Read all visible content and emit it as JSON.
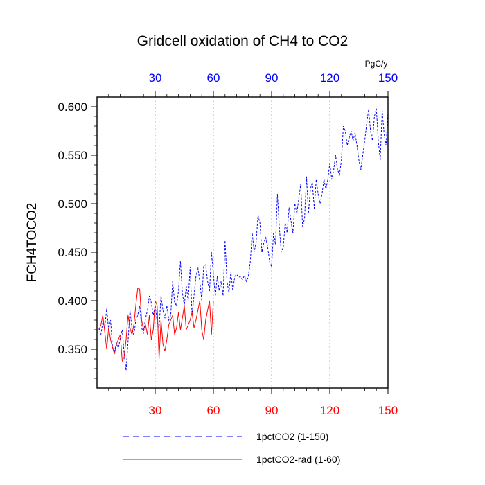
{
  "chart_data": {
    "type": "line",
    "title": "Gridcell oxidation of CH4 to CO2",
    "ylabel": "FCH4TOCO2",
    "xlabel": "",
    "top_axis_unit": "PgC/y",
    "xlim": [
      0,
      150
    ],
    "ylim": [
      0.31,
      0.61
    ],
    "yticks": [
      0.35,
      0.4,
      0.45,
      0.5,
      0.55,
      0.6
    ],
    "ytick_labels": [
      "0.350",
      "0.400",
      "0.450",
      "0.500",
      "0.550",
      "0.600"
    ],
    "xticks": [
      30,
      60,
      90,
      120,
      150
    ],
    "xtick_labels": [
      "30",
      "60",
      "90",
      "120",
      "150"
    ],
    "top_xticks": [
      30,
      60,
      90,
      120,
      150
    ],
    "top_xtick_labels": [
      "30",
      "60",
      "90",
      "120",
      "150"
    ],
    "vertical_grid": true,
    "legend_position": "bottom",
    "colors": {
      "series_1": "#0000ff",
      "series_2": "#ff0000",
      "bottom_ticks": "#ff0000",
      "top_ticks": "#0000ff"
    },
    "series": [
      {
        "name": "1pctCO2 (1-150)",
        "style": "dashed",
        "x_start": 1,
        "values": [
          0.372,
          0.365,
          0.378,
          0.372,
          0.392,
          0.37,
          0.38,
          0.352,
          0.348,
          0.356,
          0.35,
          0.362,
          0.37,
          0.345,
          0.328,
          0.358,
          0.39,
          0.372,
          0.364,
          0.38,
          0.385,
          0.395,
          0.372,
          0.367,
          0.382,
          0.39,
          0.405,
          0.398,
          0.385,
          0.395,
          0.378,
          0.372,
          0.405,
          0.39,
          0.382,
          0.395,
          0.38,
          0.385,
          0.42,
          0.398,
          0.395,
          0.41,
          0.441,
          0.408,
          0.395,
          0.415,
          0.4,
          0.435,
          0.385,
          0.405,
          0.425,
          0.434,
          0.42,
          0.4,
          0.436,
          0.437,
          0.42,
          0.41,
          0.45,
          0.427,
          0.405,
          0.425,
          0.41,
          0.42,
          0.405,
          0.462,
          0.42,
          0.408,
          0.43,
          0.41,
          0.425,
          0.427,
          0.424,
          0.425,
          0.422,
          0.426,
          0.42,
          0.425,
          0.44,
          0.47,
          0.45,
          0.46,
          0.488,
          0.48,
          0.45,
          0.46,
          0.465,
          0.455,
          0.44,
          0.435,
          0.47,
          0.458,
          0.51,
          0.475,
          0.45,
          0.455,
          0.48,
          0.47,
          0.496,
          0.482,
          0.47,
          0.5,
          0.49,
          0.505,
          0.52,
          0.476,
          0.485,
          0.528,
          0.49,
          0.515,
          0.522,
          0.495,
          0.525,
          0.51,
          0.5,
          0.51,
          0.525,
          0.515,
          0.525,
          0.542,
          0.525,
          0.535,
          0.55,
          0.535,
          0.53,
          0.545,
          0.58,
          0.575,
          0.56,
          0.568,
          0.575,
          0.565,
          0.573,
          0.56,
          0.545,
          0.535,
          0.55,
          0.565,
          0.582,
          0.597,
          0.575,
          0.565,
          0.59,
          0.598,
          0.565,
          0.545,
          0.596,
          0.572,
          0.56,
          0.595
        ]
      },
      {
        "name": "1pctCO2-rad (1-60)",
        "style": "solid",
        "x_start": 1,
        "values": [
          0.37,
          0.375,
          0.385,
          0.368,
          0.35,
          0.372,
          0.36,
          0.352,
          0.345,
          0.355,
          0.36,
          0.365,
          0.338,
          0.342,
          0.36,
          0.385,
          0.372,
          0.365,
          0.375,
          0.395,
          0.413,
          0.412,
          0.38,
          0.37,
          0.375,
          0.365,
          0.385,
          0.36,
          0.37,
          0.4,
          0.395,
          0.34,
          0.38,
          0.355,
          0.348,
          0.36,
          0.375,
          0.38,
          0.385,
          0.365,
          0.372,
          0.388,
          0.37,
          0.382,
          0.395,
          0.37,
          0.375,
          0.38,
          0.388,
          0.372,
          0.38,
          0.39,
          0.4,
          0.37,
          0.36,
          0.38,
          0.39,
          0.4,
          0.365,
          0.4
        ]
      }
    ]
  }
}
